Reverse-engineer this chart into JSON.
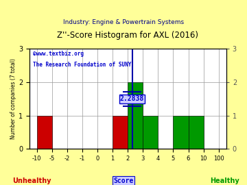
{
  "title": "Z''-Score Histogram for AXL (2016)",
  "subtitle": "Industry: Engine & Powertrain Systems",
  "watermark1": "©www.textbiz.org",
  "watermark2": "The Research Foundation of SUNY",
  "xlabel_center": "Score",
  "xlabel_left": "Unhealthy",
  "xlabel_right": "Healthy",
  "ylabel": "Number of companies (7 total)",
  "axl_score": 2.2838,
  "axl_score_label": "2.2838",
  "tick_vals": [
    -10,
    -5,
    -2,
    -1,
    0,
    1,
    2,
    3,
    4,
    5,
    6,
    10,
    100
  ],
  "tick_labels": [
    "-10",
    "-5",
    "-2",
    "-1",
    "0",
    "1",
    "2",
    "3",
    "4",
    "5",
    "6",
    "10",
    "100"
  ],
  "bar_heights": [
    1,
    0,
    0,
    0,
    0,
    1,
    2,
    1,
    0,
    1,
    1,
    0
  ],
  "bar_colors": [
    "#cc0000",
    "#cc0000",
    "#cc0000",
    "#cc0000",
    "#cc0000",
    "#cc0000",
    "#009900",
    "#009900",
    "#009900",
    "#009900",
    "#009900",
    "#009900"
  ],
  "ylim": [
    0,
    3
  ],
  "yticks": [
    0,
    1,
    2,
    3
  ],
  "background_color": "#ffff99",
  "plot_bg_color": "#ffffff",
  "grid_color": "#999999",
  "title_color": "#000000",
  "subtitle_color": "#000088",
  "score_line_color": "#0000aa",
  "score_box_color": "#0000cc",
  "score_box_bg": "#ccccff",
  "watermark_color": "#0000cc",
  "unhealthy_color": "#cc0000",
  "healthy_color": "#009900",
  "right_ytick_color": "#555555"
}
